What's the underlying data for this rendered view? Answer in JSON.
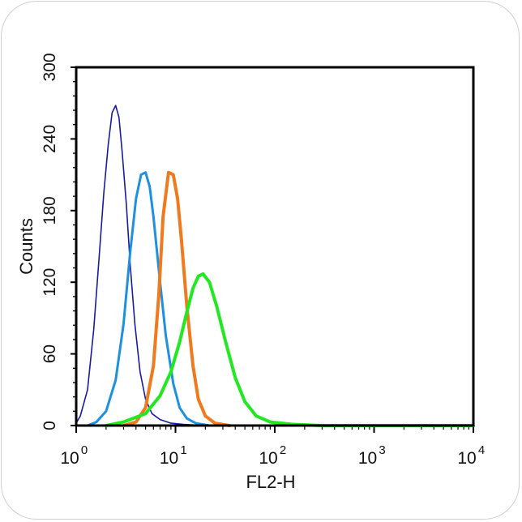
{
  "chart_data": {
    "type": "line",
    "title": "",
    "xlabel": "FL2-H",
    "ylabel": "Counts",
    "x_scale": "log",
    "xlim": [
      1,
      10000
    ],
    "ylim": [
      0,
      300
    ],
    "x_ticks": [
      {
        "base": "10",
        "exp": "0"
      },
      {
        "base": "10",
        "exp": "1"
      },
      {
        "base": "10",
        "exp": "2"
      },
      {
        "base": "10",
        "exp": "3"
      },
      {
        "base": "10",
        "exp": "4"
      }
    ],
    "y_ticks": [
      "0",
      "60",
      "120",
      "180",
      "240",
      "300"
    ],
    "grid": false,
    "legend": "none",
    "series": [
      {
        "color": "#1a1aa0",
        "width": 1.6,
        "points": [
          [
            1.0,
            2
          ],
          [
            1.1,
            8
          ],
          [
            1.3,
            30
          ],
          [
            1.5,
            80
          ],
          [
            1.7,
            140
          ],
          [
            1.9,
            195
          ],
          [
            2.1,
            235
          ],
          [
            2.3,
            262
          ],
          [
            2.5,
            268
          ],
          [
            2.7,
            258
          ],
          [
            2.9,
            230
          ],
          [
            3.2,
            185
          ],
          [
            3.5,
            135
          ],
          [
            3.9,
            85
          ],
          [
            4.4,
            45
          ],
          [
            5.0,
            22
          ],
          [
            5.8,
            10
          ],
          [
            7.0,
            5
          ],
          [
            9.0,
            2
          ],
          [
            12.0,
            1
          ],
          [
            20.0,
            0
          ]
        ]
      },
      {
        "color": "#1e90e0",
        "width": 3,
        "points": [
          [
            1.3,
            0
          ],
          [
            1.6,
            3
          ],
          [
            2.0,
            12
          ],
          [
            2.5,
            38
          ],
          [
            3.0,
            85
          ],
          [
            3.5,
            145
          ],
          [
            4.0,
            190
          ],
          [
            4.5,
            210
          ],
          [
            5.0,
            212
          ],
          [
            5.5,
            200
          ],
          [
            6.0,
            175
          ],
          [
            7.0,
            120
          ],
          [
            8.0,
            75
          ],
          [
            9.5,
            35
          ],
          [
            11.0,
            15
          ],
          [
            13.0,
            6
          ],
          [
            16.0,
            2
          ],
          [
            22.0,
            0
          ]
        ]
      },
      {
        "color": "#f07a1e",
        "width": 4,
        "points": [
          [
            3.0,
            0
          ],
          [
            4.0,
            3
          ],
          [
            5.0,
            15
          ],
          [
            6.0,
            50
          ],
          [
            6.8,
            110
          ],
          [
            7.5,
            175
          ],
          [
            8.5,
            212
          ],
          [
            9.5,
            210
          ],
          [
            10.5,
            190
          ],
          [
            11.5,
            155
          ],
          [
            13.0,
            100
          ],
          [
            15.0,
            50
          ],
          [
            17.0,
            22
          ],
          [
            20.0,
            8
          ],
          [
            25.0,
            2
          ],
          [
            35.0,
            0
          ]
        ]
      },
      {
        "color": "#22e822",
        "width": 4,
        "points": [
          [
            2.0,
            0
          ],
          [
            3.0,
            3
          ],
          [
            5.0,
            10
          ],
          [
            7.0,
            25
          ],
          [
            9.0,
            45
          ],
          [
            11.0,
            70
          ],
          [
            13.0,
            95
          ],
          [
            15.0,
            115
          ],
          [
            17.0,
            125
          ],
          [
            19.0,
            127
          ],
          [
            22.0,
            120
          ],
          [
            26.0,
            100
          ],
          [
            32.0,
            70
          ],
          [
            40.0,
            40
          ],
          [
            50.0,
            20
          ],
          [
            65.0,
            8
          ],
          [
            90.0,
            3
          ],
          [
            150.0,
            1
          ],
          [
            300.0,
            0
          ],
          [
            10000.0,
            0
          ]
        ]
      }
    ]
  }
}
